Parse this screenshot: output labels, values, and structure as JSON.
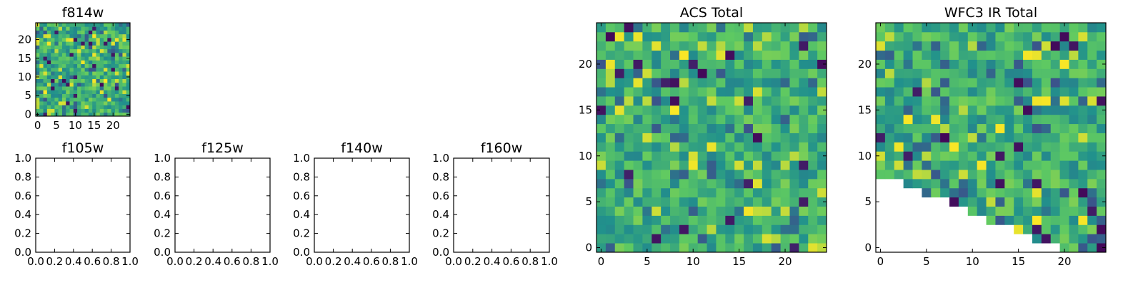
{
  "colormap": "viridis",
  "panels": [
    {
      "title": "f814w",
      "type": "heatmap",
      "xticks": [
        "0",
        "5",
        "10",
        "15",
        "20"
      ],
      "yticks": [
        "0",
        "5",
        "10",
        "15",
        "20"
      ],
      "grid_size": 25,
      "mask": "none",
      "seed": 814
    },
    {
      "title": "f105w",
      "type": "empty",
      "xticks": [
        "0.0",
        "0.2",
        "0.4",
        "0.6",
        "0.8",
        "1.0"
      ],
      "yticks": [
        "0.0",
        "0.2",
        "0.4",
        "0.6",
        "0.8",
        "1.0"
      ]
    },
    {
      "title": "f125w",
      "type": "empty",
      "xticks": [
        "0.0",
        "0.2",
        "0.4",
        "0.6",
        "0.8",
        "1.0"
      ],
      "yticks": [
        "0.0",
        "0.2",
        "0.4",
        "0.6",
        "0.8",
        "1.0"
      ]
    },
    {
      "title": "f140w",
      "type": "empty",
      "xticks": [
        "0.0",
        "0.2",
        "0.4",
        "0.6",
        "0.8",
        "1.0"
      ],
      "yticks": [
        "0.0",
        "0.2",
        "0.4",
        "0.6",
        "0.8",
        "1.0"
      ]
    },
    {
      "title": "f160w",
      "type": "empty",
      "xticks": [
        "0.0",
        "0.2",
        "0.4",
        "0.6",
        "0.8",
        "1.0"
      ],
      "yticks": [
        "0.0",
        "0.2",
        "0.4",
        "0.6",
        "0.8",
        "1.0"
      ]
    },
    {
      "title": "ACS Total",
      "type": "heatmap",
      "xticks": [
        "0",
        "5",
        "10",
        "15",
        "20"
      ],
      "yticks": [
        "0",
        "5",
        "10",
        "15",
        "20"
      ],
      "grid_size": 25,
      "mask": "none",
      "seed": 1001
    },
    {
      "title": "WFC3 IR Total",
      "type": "heatmap",
      "xticks": [
        "0",
        "5",
        "10",
        "15",
        "20"
      ],
      "yticks": [
        "0",
        "5",
        "10",
        "15",
        "20"
      ],
      "grid_size": 25,
      "mask": "lower-left-triangle",
      "seed": 2002
    }
  ],
  "chart_data": [
    {
      "type": "heatmap",
      "title": "f814w",
      "xlim": [
        -0.5,
        24.5
      ],
      "ylim": [
        -0.5,
        24.5
      ],
      "note_values": "25x25 image of per-pixel values, viridis colormap; individual values not labeled"
    },
    {
      "type": "scatter",
      "title": "f105w",
      "xlim": [
        0,
        1
      ],
      "ylim": [
        0,
        1
      ],
      "series": []
    },
    {
      "type": "scatter",
      "title": "f125w",
      "xlim": [
        0,
        1
      ],
      "ylim": [
        0,
        1
      ],
      "series": []
    },
    {
      "type": "scatter",
      "title": "f140w",
      "xlim": [
        0,
        1
      ],
      "ylim": [
        0,
        1
      ],
      "series": []
    },
    {
      "type": "scatter",
      "title": "f160w",
      "xlim": [
        0,
        1
      ],
      "ylim": [
        0,
        1
      ],
      "series": []
    },
    {
      "type": "heatmap",
      "title": "ACS Total",
      "xlim": [
        -0.5,
        24.5
      ],
      "ylim": [
        -0.5,
        24.5
      ]
    },
    {
      "type": "heatmap",
      "title": "WFC3 IR Total",
      "xlim": [
        -0.5,
        24.5
      ],
      "ylim": [
        -0.5,
        24.5
      ]
    }
  ]
}
